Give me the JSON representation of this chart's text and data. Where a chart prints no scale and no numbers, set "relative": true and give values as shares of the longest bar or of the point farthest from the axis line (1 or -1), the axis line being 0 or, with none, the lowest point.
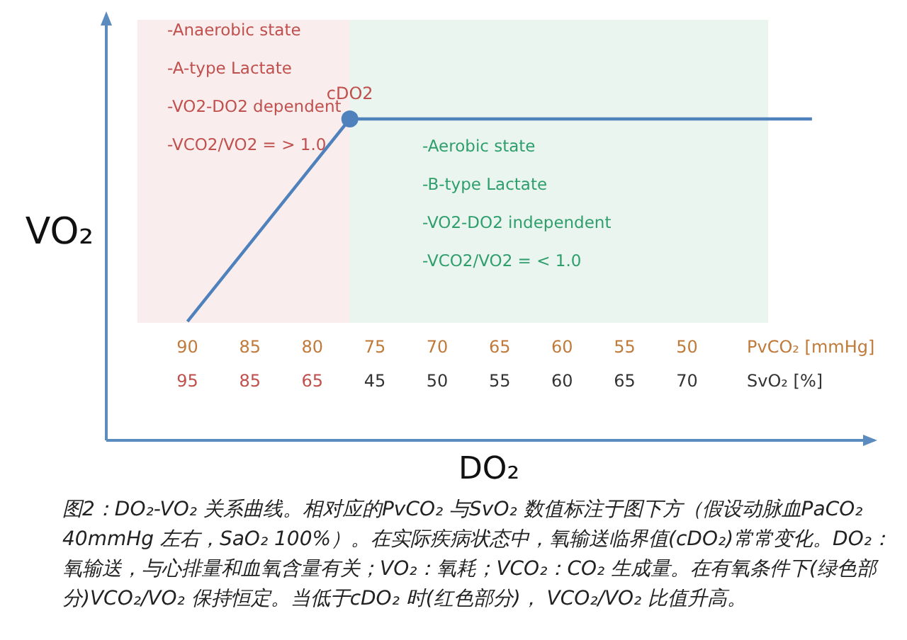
{
  "chart_data": {
    "type": "line",
    "relative": true,
    "xlabel": "DO₂",
    "ylabel": "VO₂",
    "xlim": [
      96.5,
      35
    ],
    "xticks": [
      90,
      85,
      80,
      75,
      70,
      65,
      60,
      55,
      50
    ],
    "series": [
      {
        "color": "#4f81bd",
        "x": [
          90,
          77,
          40
        ],
        "values": [
          0.37,
          1,
          1
        ],
        "marker": "none"
      },
      {
        "type": "scatter",
        "color": "#4f81bd",
        "x": [
          77
        ],
        "values": [
          1
        ],
        "marker": "circle"
      }
    ],
    "bands": [
      {
        "axis": "x",
        "from": 94,
        "to": 77,
        "color": "#c0504d"
      },
      {
        "axis": "x",
        "from": 77,
        "to": 43.5,
        "color": "#2e9e6b"
      }
    ],
    "annotations": [
      {
        "text": "cDO2",
        "x": 77,
        "y": 1
      },
      "-Anaerobic state",
      "-A-type Lactate",
      "-VO2-DO2 dependent",
      "-VCO2/VO2 = > 1.0",
      "-Aerobic state",
      "-B-type Lactate",
      "-VO2-DO2 independent",
      "-VCO2/VO2 = < 1.0",
      "PvCO₂ [mmHg]",
      "95",
      "85",
      "65",
      "45",
      "50",
      "55",
      "60",
      "65",
      "70",
      "SvO₂ [%]",
      "图2：DO₂-VO₂ 关系曲线。相对应的PvCO₂ 与SvO₂ 数值标注于图下方（假设动脉血PaCO₂ 40mmHg 左右，SaO₂ 100%）。在实际疾病状态中，氧输送临界值(cDO₂)常常变化。DO₂：氧输送，与心排量和血氧含量有关；VO₂：氧耗；VCO₂：CO₂ 生成量。在有氧条件下(绿色部分)VCO₂/VO₂ 保持恒定。当低于cDO₂ 时(红色部分)， VCO₂/VO₂ 比值升高。"
    ]
  }
}
